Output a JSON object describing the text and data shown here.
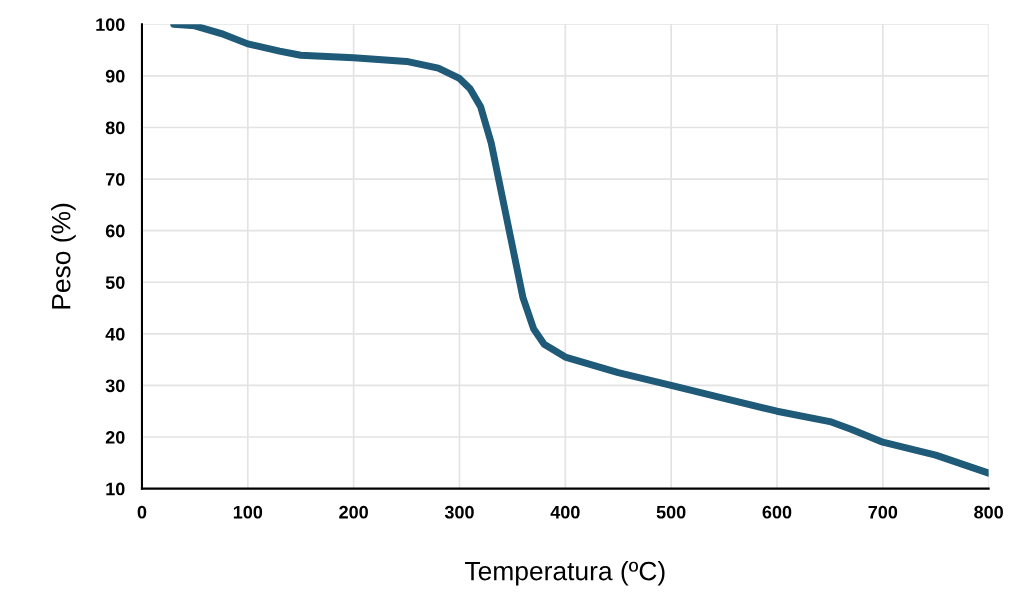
{
  "chart_data": {
    "type": "line",
    "xlabel": "Temperatura (ºC)",
    "ylabel": "Peso (%)",
    "x": [
      30,
      50,
      75,
      100,
      130,
      150,
      200,
      250,
      280,
      300,
      310,
      320,
      330,
      340,
      350,
      360,
      370,
      380,
      400,
      450,
      500,
      550,
      600,
      650,
      670,
      700,
      750,
      800
    ],
    "series": [
      {
        "color": "#1f5a78",
        "values": [
          100,
          99.7,
          98.2,
          96.2,
          94.8,
          94,
          93.5,
          92.8,
          91.5,
          89.5,
          87.5,
          84,
          77,
          67,
          57,
          47,
          41,
          38,
          35.5,
          32.5,
          30,
          27.5,
          25,
          23,
          21.5,
          19,
          16.5,
          13
        ]
      }
    ],
    "xlim": [
      0,
      800
    ],
    "xticks": [
      0,
      100,
      200,
      300,
      400,
      500,
      600,
      700,
      800
    ],
    "ylim": [
      10,
      100
    ],
    "yticks": [
      10,
      20,
      30,
      40,
      50,
      60,
      70,
      80,
      90,
      100
    ],
    "grid": true,
    "marker": "none",
    "line_style": "solid"
  }
}
